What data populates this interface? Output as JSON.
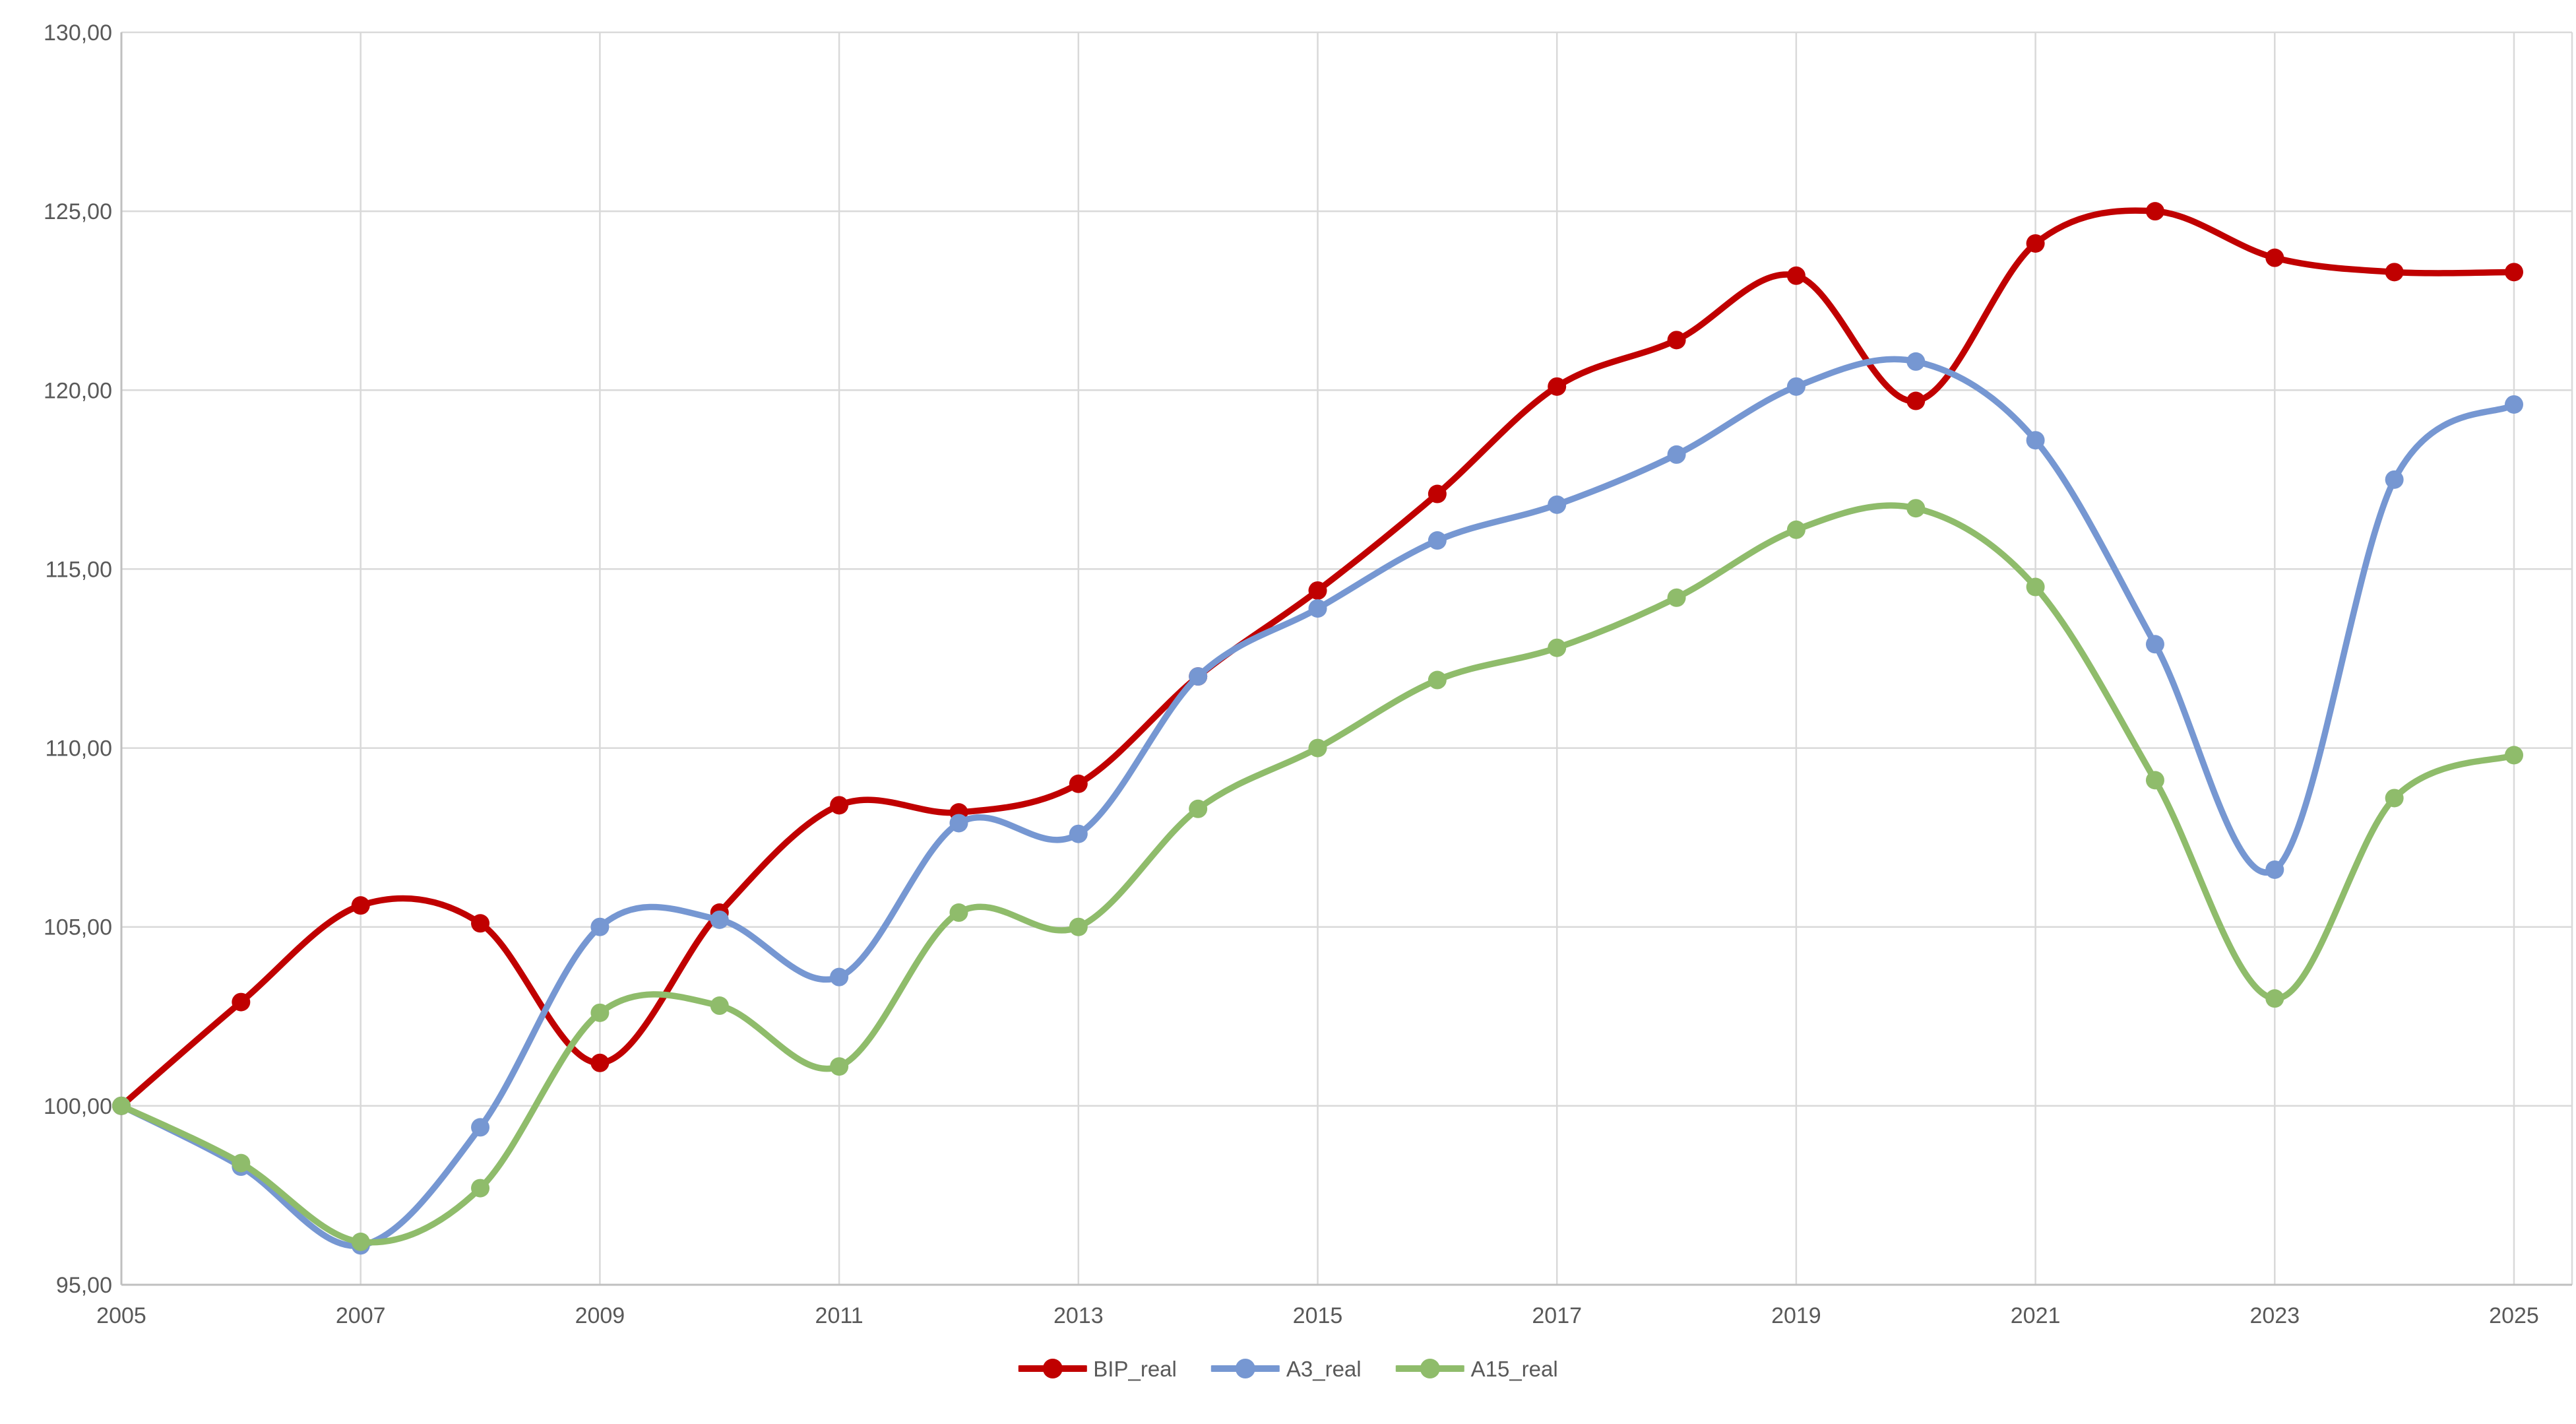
{
  "chart_data": {
    "type": "line",
    "smoothed": true,
    "grid": true,
    "legend_position": "bottom",
    "x": [
      2005,
      2006,
      2007,
      2008,
      2009,
      2010,
      2011,
      2012,
      2013,
      2014,
      2015,
      2016,
      2017,
      2018,
      2019,
      2020,
      2021,
      2022,
      2023,
      2024,
      2025
    ],
    "x_tick_labels": [
      "2005",
      "2007",
      "2009",
      "2011",
      "2013",
      "2015",
      "2017",
      "2019",
      "2021",
      "2023",
      "2025"
    ],
    "y_axis": {
      "min": 95,
      "max": 130,
      "step": 5,
      "tick_labels": [
        "95,00",
        "100,00",
        "105,00",
        "110,00",
        "115,00",
        "120,00",
        "125,00",
        "130,00"
      ]
    },
    "series": [
      {
        "name": "BIP_real",
        "color": "#C00000",
        "values": [
          100.0,
          102.9,
          105.6,
          105.1,
          101.2,
          105.4,
          108.4,
          108.2,
          109.0,
          112.0,
          114.4,
          117.1,
          120.1,
          121.4,
          123.2,
          119.7,
          124.1,
          125.0,
          123.7,
          123.3,
          123.3
        ]
      },
      {
        "name": "A3_real",
        "color": "#7697D2",
        "values": [
          100.0,
          98.3,
          96.1,
          99.4,
          105.0,
          105.2,
          103.6,
          107.9,
          107.6,
          112.0,
          113.9,
          115.8,
          116.8,
          118.2,
          120.1,
          120.8,
          118.6,
          112.9,
          106.6,
          117.5,
          119.6
        ]
      },
      {
        "name": "A15_real",
        "color": "#8FBC6B",
        "values": [
          100.0,
          98.4,
          96.2,
          97.7,
          102.6,
          102.8,
          101.1,
          105.4,
          105.0,
          108.3,
          110.0,
          111.9,
          112.8,
          114.2,
          116.1,
          116.7,
          114.5,
          109.1,
          103.0,
          108.6,
          109.8
        ]
      }
    ]
  },
  "colors": {
    "background": "#FFFFFF",
    "gridline": "#D9D9D9",
    "axis_line": "#BFBFBF",
    "tick_text": "#595959"
  }
}
